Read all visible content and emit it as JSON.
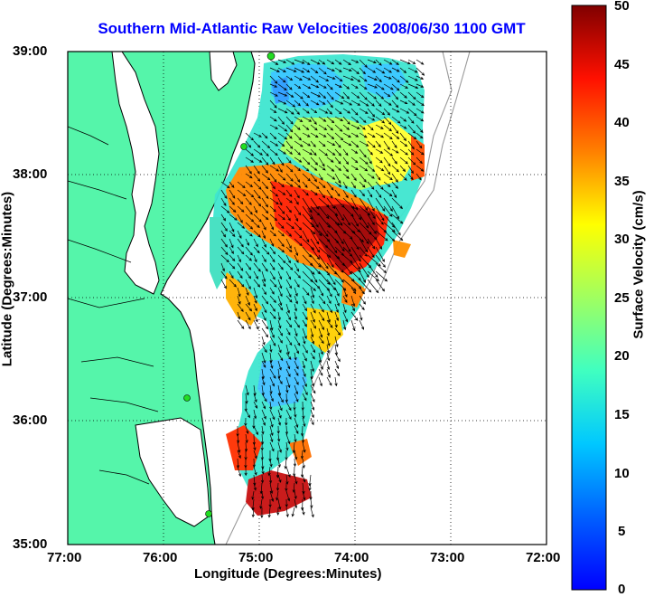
{
  "title": "Southern Mid-Atlantic Raw Velocities 2008/06/30 1100 GMT",
  "x_axis": {
    "label": "Longitude (Degrees:Minutes)",
    "ticks": [
      "77:00",
      "76:00",
      "75:00",
      "74:00",
      "73:00",
      "72:00"
    ]
  },
  "y_axis": {
    "label": "Latitude (Degrees:Minutes)",
    "ticks": [
      "39:00",
      "38:00",
      "37:00",
      "36:00",
      "35:00"
    ]
  },
  "colorbar": {
    "label": "Surface Velocity (cm/s)",
    "ticks": [
      "50",
      "45",
      "40",
      "35",
      "30",
      "25",
      "20",
      "15",
      "10",
      "5",
      "0"
    ],
    "range": [
      0,
      50
    ],
    "colormap": "jet"
  },
  "colors": {
    "title": "#0000ff",
    "land": "#55f5aa",
    "water": "#ffffff",
    "arrows": "#000000",
    "stations": "#22dd22"
  },
  "map_extent": {
    "lon_range": [
      -77,
      -72
    ],
    "lat_range": [
      35,
      39
    ]
  },
  "grid": "dotted"
}
